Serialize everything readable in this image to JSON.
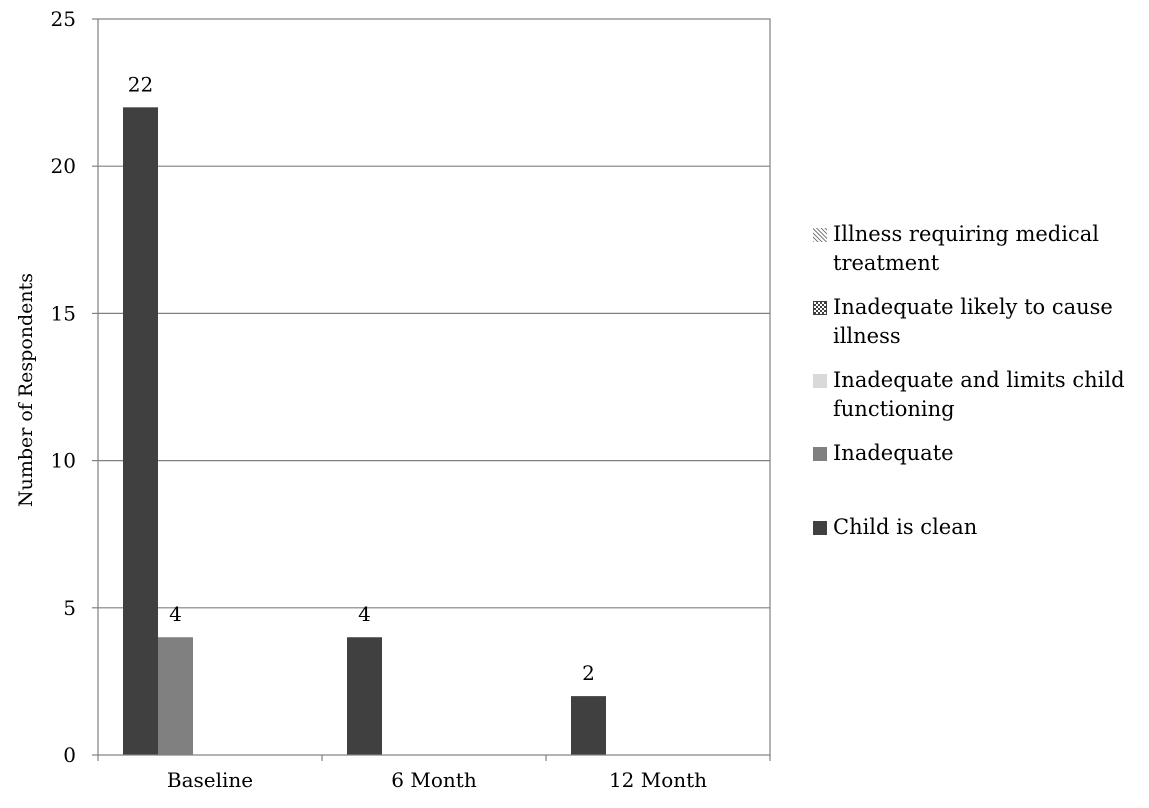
{
  "chart_data": {
    "type": "bar",
    "title": "",
    "xlabel": "",
    "ylabel": "Number of Respondents",
    "ylim": [
      0,
      25
    ],
    "yticks": [
      0,
      5,
      10,
      15,
      20,
      25
    ],
    "grid": true,
    "legend_position": "right",
    "categories": [
      "Baseline",
      "6 Month",
      "12 Month"
    ],
    "series": [
      {
        "name": "Child is clean",
        "color": "#404040",
        "pattern": "solid",
        "values": [
          22,
          4,
          2
        ],
        "labels": [
          "22",
          "4",
          "2"
        ]
      },
      {
        "name": "Inadequate",
        "color": "#808080",
        "pattern": "solid",
        "values": [
          4,
          0,
          0
        ],
        "labels": [
          "4",
          "",
          ""
        ]
      },
      {
        "name": "Inadequate and limits child functioning",
        "color": "#d9d9d9",
        "pattern": "solid",
        "values": [
          0,
          0,
          0
        ],
        "labels": [
          "",
          "",
          ""
        ]
      },
      {
        "name": "Inadequate likely to cause illness",
        "color": "#404040",
        "pattern": "checker",
        "values": [
          0,
          0,
          0
        ],
        "labels": [
          "",
          "",
          ""
        ]
      },
      {
        "name": "Illness requiring medical treatment",
        "color": "#7f7f7f",
        "pattern": "diagonal",
        "values": [
          0,
          0,
          0
        ],
        "labels": [
          "",
          "",
          ""
        ]
      }
    ],
    "legend_order": [
      "Illness requiring medical treatment",
      "Inadequate likely to cause illness",
      "Inadequate and limits child functioning",
      "Inadequate",
      "Child is clean"
    ]
  }
}
